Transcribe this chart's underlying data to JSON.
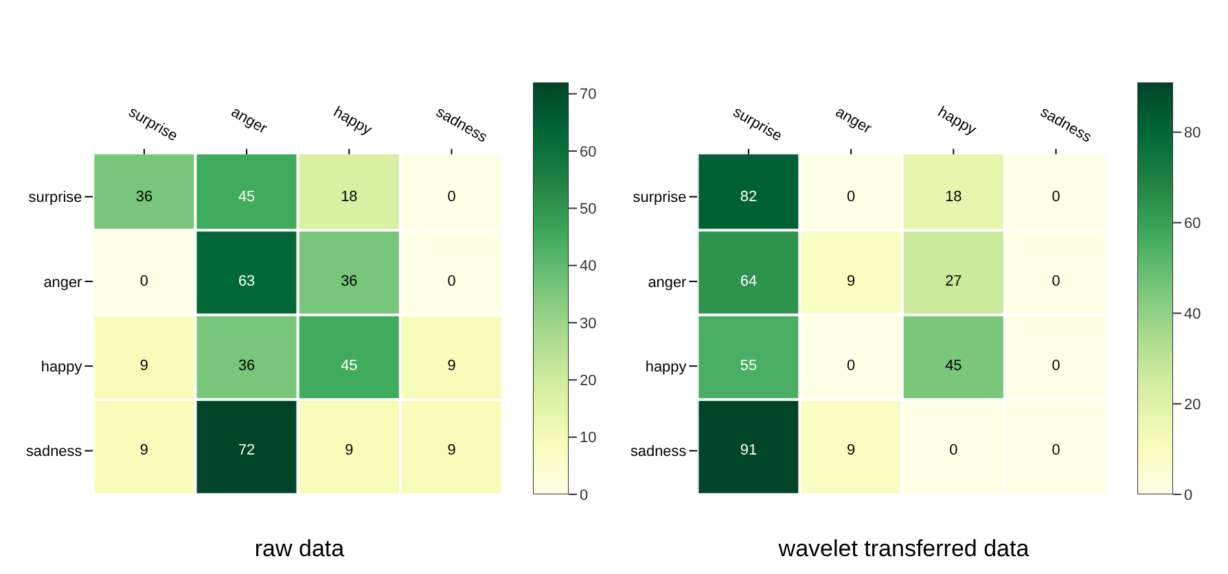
{
  "chart_data": [
    {
      "type": "heatmap",
      "title": "raw data",
      "categories": [
        "surprise",
        "anger",
        "happy",
        "sadness"
      ],
      "y_categories": [
        "surprise",
        "anger",
        "happy",
        "sadness"
      ],
      "cells": [
        [
          36,
          45,
          18,
          0
        ],
        [
          0,
          63,
          36,
          0
        ],
        [
          9,
          36,
          45,
          9
        ],
        [
          9,
          72,
          9,
          9
        ]
      ],
      "clim": [
        0,
        72
      ],
      "cticks": [
        0,
        10,
        20,
        30,
        40,
        50,
        60,
        70
      ],
      "data_labels": true
    },
    {
      "type": "heatmap",
      "title": "wavelet transferred data",
      "categories": [
        "surprise",
        "anger",
        "happy",
        "sadness"
      ],
      "y_categories": [
        "surprise",
        "anger",
        "happy",
        "sadness"
      ],
      "cells": [
        [
          82,
          0,
          18,
          0
        ],
        [
          64,
          9,
          27,
          0
        ],
        [
          55,
          0,
          45,
          0
        ],
        [
          91,
          9,
          0,
          0
        ]
      ],
      "clim": [
        0,
        91
      ],
      "cticks": [
        0,
        20,
        40,
        60,
        80
      ],
      "data_labels": true
    }
  ]
}
